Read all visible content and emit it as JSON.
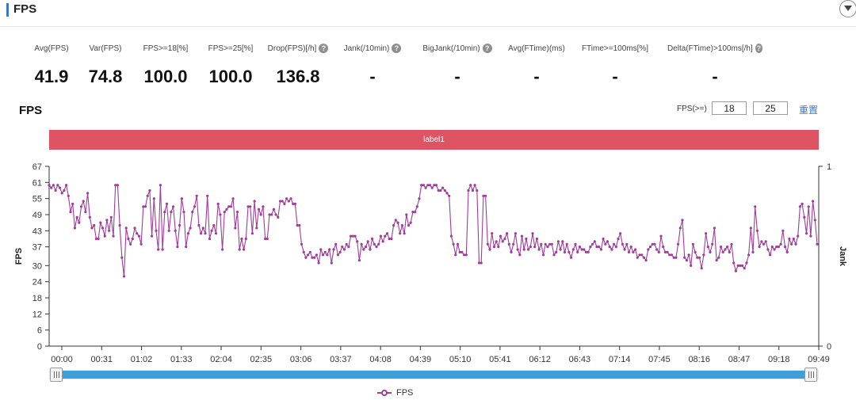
{
  "header": {
    "title": "FPS"
  },
  "stats": [
    {
      "label": "Avg(FPS)",
      "value": "41.9",
      "help": false
    },
    {
      "label": "Var(FPS)",
      "value": "74.8",
      "help": false
    },
    {
      "label": "FPS>=18[%]",
      "value": "100.0",
      "help": false
    },
    {
      "label": "FPS>=25[%]",
      "value": "100.0",
      "help": false
    },
    {
      "label": "Drop(FPS)[/h]",
      "value": "136.8",
      "help": true
    },
    {
      "label": "Jank(/10min)",
      "value": "-",
      "help": true
    },
    {
      "label": "BigJank(/10min)",
      "value": "-",
      "help": true
    },
    {
      "label": "Avg(FTime)(ms)",
      "value": "-",
      "help": false
    },
    {
      "label": "FTime>=100ms[%]",
      "value": "-",
      "help": false
    },
    {
      "label": "Delta(FTime)>100ms[/h]",
      "value": "-",
      "help": true
    }
  ],
  "chart_section": {
    "title": "FPS",
    "filter_label": "FPS(>=)",
    "filter_value_1": "18",
    "filter_value_2": "25",
    "reset_label": "重置"
  },
  "colors": {
    "series": "#a03c9a",
    "label_band": "#de5465",
    "accent": "#3a78c3",
    "slider": "#3d9fd8"
  },
  "chart_data": {
    "type": "line",
    "label_band": "label1",
    "ylabel": "FPS",
    "y2label": "Jank",
    "ylim": [
      0,
      67
    ],
    "yticks": [
      0,
      6,
      12,
      18,
      24,
      30,
      37,
      43,
      49,
      55,
      61,
      67
    ],
    "y2lim": [
      0,
      1
    ],
    "y2ticks": [
      0,
      1
    ],
    "xticks": [
      "00:00",
      "00:31",
      "01:02",
      "01:33",
      "02:04",
      "02:35",
      "03:06",
      "03:37",
      "04:08",
      "04:39",
      "05:10",
      "05:41",
      "06:12",
      "06:43",
      "07:14",
      "07:45",
      "08:16",
      "08:47",
      "09:18",
      "09:49"
    ],
    "grid": false,
    "legend": "bottom",
    "series": [
      {
        "name": "FPS",
        "values": [
          60,
          59,
          60,
          58,
          60,
          59,
          57,
          58,
          60,
          56,
          50,
          53,
          44,
          48,
          46,
          52,
          54,
          50,
          57,
          48,
          44,
          45,
          40,
          40,
          46,
          44,
          41,
          47,
          43,
          48,
          41,
          60,
          60,
          45,
          33,
          26,
          44,
          40,
          38,
          40,
          44,
          42,
          41,
          38,
          52,
          52,
          56,
          58,
          41,
          55,
          43,
          36,
          60,
          36,
          50,
          53,
          43,
          50,
          52,
          43,
          37,
          45,
          55,
          50,
          37,
          42,
          44,
          50,
          52,
          56,
          45,
          42,
          44,
          42,
          56,
          40,
          43,
          45,
          42,
          53,
          49,
          36,
          50,
          51,
          52,
          52,
          55,
          44,
          50,
          36,
          40,
          36,
          40,
          52,
          52,
          42,
          54,
          44,
          51,
          49,
          52,
          40,
          40,
          49,
          49,
          51,
          49,
          48,
          54,
          54,
          53,
          55,
          54,
          55,
          53,
          53,
          45,
          45,
          38,
          35,
          33,
          34,
          35,
          33,
          33,
          34,
          31,
          36,
          34,
          35,
          34,
          36,
          31,
          36,
          38,
          34,
          35,
          37,
          36,
          38,
          37,
          41,
          41,
          41,
          39,
          32,
          38,
          36,
          37,
          39,
          36,
          40,
          38,
          37,
          38,
          41,
          39,
          41,
          42,
          40,
          40,
          45,
          47,
          46,
          42,
          45,
          42,
          49,
          45,
          46,
          50,
          50,
          52,
          55,
          60,
          60,
          59,
          60,
          60,
          59,
          60,
          60,
          58,
          58,
          59,
          58,
          57,
          56,
          41,
          38,
          34,
          38,
          35,
          35,
          34,
          34,
          58,
          60,
          58,
          60,
          58,
          31,
          31,
          56,
          56,
          38,
          36,
          42,
          37,
          39,
          37,
          41,
          39,
          40,
          42,
          38,
          35,
          38,
          42,
          36,
          34,
          41,
          36,
          40,
          36,
          37,
          42,
          37,
          40,
          36,
          38,
          34,
          38,
          37,
          38,
          38,
          34,
          35,
          39,
          36,
          39,
          35,
          38,
          35,
          33,
          36,
          38,
          35,
          37,
          36,
          36,
          35,
          35,
          37,
          38,
          39,
          37,
          37,
          36,
          40,
          38,
          39,
          37,
          36,
          38,
          37,
          40,
          42,
          38,
          36,
          38,
          35,
          37,
          35,
          36,
          33,
          34,
          34,
          33,
          32,
          36,
          37,
          38,
          38,
          36,
          35,
          41,
          37,
          35,
          35,
          34,
          34,
          33,
          33,
          38,
          44,
          47,
          33,
          32,
          34,
          30,
          38,
          35,
          33,
          33,
          29,
          34,
          42,
          37,
          35,
          38,
          44,
          32,
          33,
          37,
          35,
          36,
          37,
          35,
          38,
          31,
          28,
          30,
          30,
          30,
          29,
          31,
          34,
          44,
          35,
          52,
          43,
          37,
          39,
          38,
          39,
          36,
          34,
          37,
          36,
          37,
          37,
          38,
          43,
          37,
          35,
          40,
          38,
          40,
          38,
          41,
          52,
          53,
          48,
          42,
          52,
          41,
          54,
          47,
          38
        ]
      }
    ]
  },
  "slider": {
    "start": 0,
    "end": 1
  }
}
